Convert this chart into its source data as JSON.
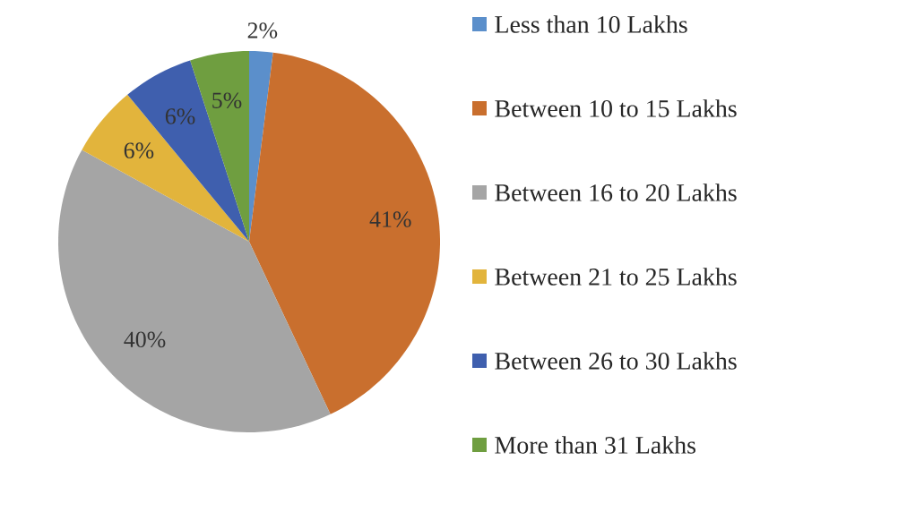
{
  "chart_data": {
    "type": "pie",
    "legend": "right",
    "categories": [
      "Less than 10 Lakhs",
      "Between 10 to 15 Lakhs",
      "Between 16 to 20 Lakhs",
      "Between 21 to 25 Lakhs",
      "Between 26 to 30 Lakhs",
      "More than 31 Lakhs"
    ],
    "values": [
      2,
      41,
      40,
      6,
      6,
      5
    ],
    "value_labels": [
      "2%",
      "41%",
      "40%",
      "6%",
      "6%",
      "5%"
    ],
    "colors": [
      "#5b8fcb",
      "#c96f2e",
      "#a5a5a5",
      "#e2b43c",
      "#3f5fae",
      "#6f9e40"
    ]
  }
}
